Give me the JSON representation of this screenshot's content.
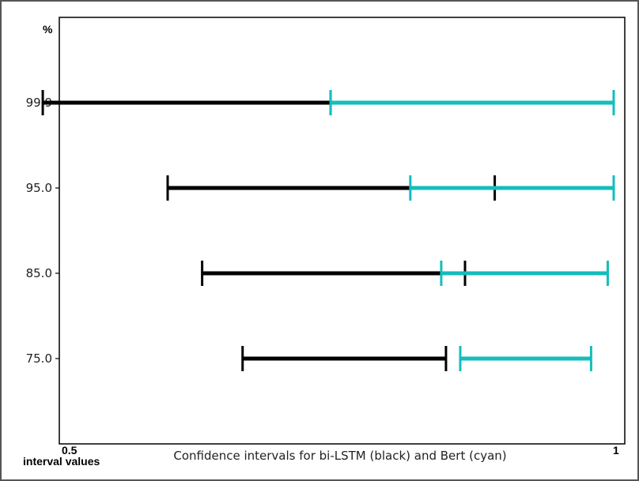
{
  "chart_data": {
    "type": "errorbar-interval",
    "title": "",
    "xlabel": "Confidence intervals for bi-LSTM (black) and Bert (cyan)",
    "ylabel": "%",
    "x_left_label": "0.5",
    "x_left_caption": "interval values",
    "x_right_label": "1",
    "xlim": [
      0.5,
      1.0
    ],
    "y_levels": [
      99.9,
      95.0,
      85.0,
      75.0
    ],
    "y_tick_labels": [
      "99.9",
      "95.0",
      "85.0",
      "75.0"
    ],
    "series": [
      {
        "name": "bi-LSTM",
        "color": "#000000",
        "intervals": [
          {
            "level": 99.9,
            "low": 0.518,
            "high": 0.76
          },
          {
            "level": 95.0,
            "low": 0.623,
            "high": 0.898
          },
          {
            "level": 85.0,
            "low": 0.652,
            "high": 0.873
          },
          {
            "level": 75.0,
            "low": 0.686,
            "high": 0.857
          }
        ]
      },
      {
        "name": "Bert",
        "color": "#14bdbd",
        "intervals": [
          {
            "level": 99.9,
            "low": 0.76,
            "high": 0.998
          },
          {
            "level": 95.0,
            "low": 0.827,
            "high": 0.998
          },
          {
            "level": 85.0,
            "low": 0.853,
            "high": 0.993
          },
          {
            "level": 75.0,
            "low": 0.869,
            "high": 0.979
          }
        ]
      }
    ]
  }
}
